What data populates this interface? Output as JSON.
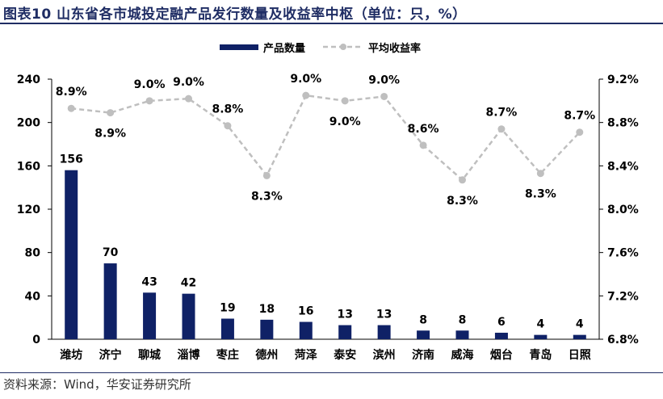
{
  "title": "图表10 山东省各市城投定融产品发行数量及收益率中枢（单位：只，%）",
  "source": "资料来源：Wind，华安证券研究所",
  "colors": {
    "bar": "#0f2166",
    "line": "#bfbfbf",
    "title": "#1f2d64"
  },
  "chart_data": {
    "type": "bar",
    "categories": [
      "潍坊",
      "济宁",
      "聊城",
      "淄博",
      "枣庄",
      "德州",
      "菏泽",
      "泰安",
      "滨州",
      "济南",
      "威海",
      "烟台",
      "青岛",
      "日照"
    ],
    "series": [
      {
        "name": "产品数量",
        "type": "bar",
        "axis": "left",
        "values": [
          156,
          70,
          43,
          42,
          19,
          18,
          16,
          13,
          13,
          8,
          8,
          6,
          4,
          4
        ]
      },
      {
        "name": "平均收益率",
        "type": "line",
        "axis": "right",
        "style": "dashed",
        "values": [
          8.93,
          8.89,
          9.0,
          9.02,
          8.77,
          8.31,
          9.05,
          9.0,
          9.04,
          8.59,
          8.27,
          8.74,
          8.33,
          8.71
        ],
        "labels": [
          "8.9%",
          "8.9%",
          "9.0%",
          "9.0%",
          "8.8%",
          "8.3%",
          "9.0%",
          "9.0%",
          "9.0%",
          "8.6%",
          "8.3%",
          "8.7%",
          "8.3%",
          "8.7%"
        ]
      }
    ],
    "y_left": {
      "min": 0,
      "max": 240,
      "ticks": [
        "0",
        "40",
        "80",
        "120",
        "160",
        "200",
        "240"
      ]
    },
    "y_right": {
      "min": 6.8,
      "max": 9.2,
      "ticks": [
        "6.8%",
        "7.2%",
        "7.6%",
        "8.0%",
        "8.4%",
        "8.8%",
        "9.2%"
      ]
    },
    "legend_position": "top-center",
    "grid": false
  }
}
